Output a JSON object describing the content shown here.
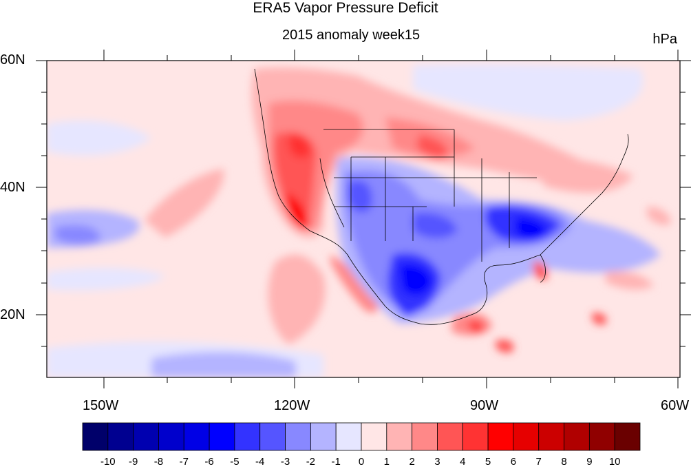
{
  "title": "ERA5 Vapor Pressure Deficit",
  "subtitle": "2015 anomaly week15",
  "units": "hPa",
  "map": {
    "lat_labels": [
      "60N",
      "40N",
      "20N"
    ],
    "lon_labels": [
      "150W",
      "120W",
      "90W",
      "60W"
    ],
    "lon_range": [
      -160,
      -60
    ],
    "lat_range": [
      10,
      60
    ]
  },
  "colorbar": {
    "labels": [
      "-10",
      "-9",
      "-8",
      "-7",
      "-6",
      "-5",
      "-4",
      "-3",
      "-2",
      "-1",
      "0",
      "1",
      "2",
      "3",
      "4",
      "5",
      "6",
      "7",
      "8",
      "9",
      "10"
    ],
    "colors": [
      "#00006a",
      "#000090",
      "#0000b0",
      "#0000cc",
      "#0000e6",
      "#0000ff",
      "#3333ff",
      "#5555ff",
      "#8888ff",
      "#b4b4ff",
      "#e6e6ff",
      "#ffe6e6",
      "#ffb4b4",
      "#ff8888",
      "#ff5555",
      "#ff3333",
      "#ff0000",
      "#e60000",
      "#cc0000",
      "#b00000",
      "#900000",
      "#6a0000"
    ]
  }
}
